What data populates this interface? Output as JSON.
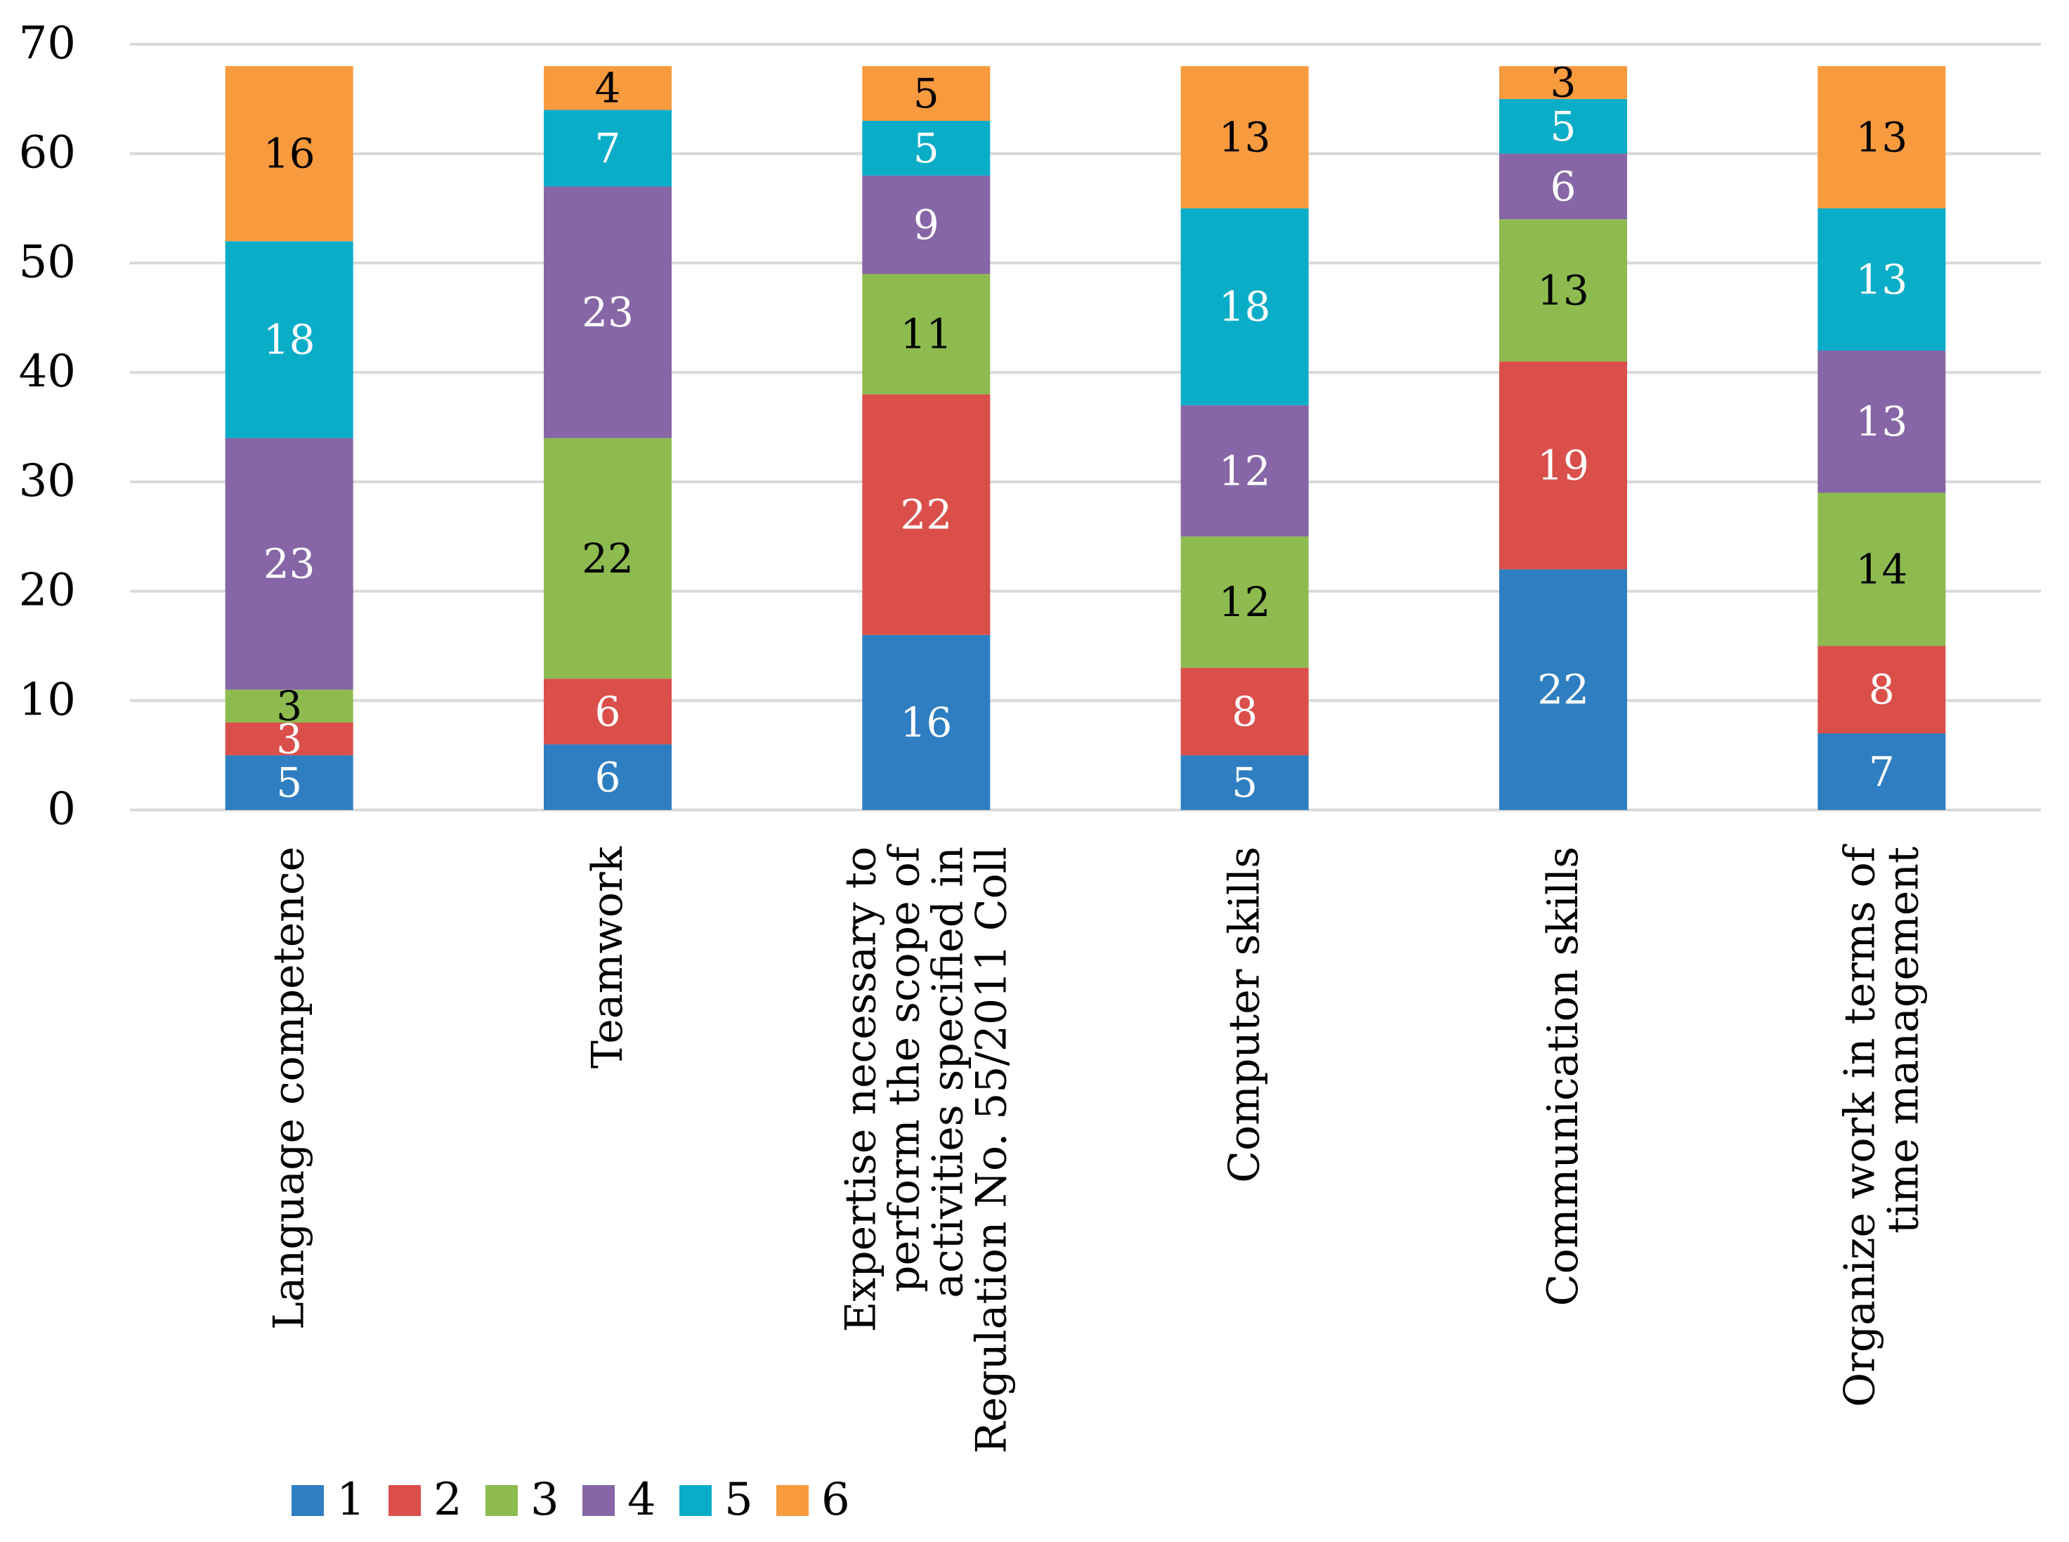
{
  "chart_data": {
    "type": "bar",
    "stacked": true,
    "categories": [
      [
        "Language competence"
      ],
      [
        "Teamwork"
      ],
      [
        "Expertise necessary to",
        "perform the scope of",
        "activities specified in",
        "Regulation No. 55/2011 Coll"
      ],
      [
        "Computer skills"
      ],
      [
        "Communication skills"
      ],
      [
        "Organize work in terms of",
        "time management"
      ]
    ],
    "series": [
      {
        "name": "1",
        "color": "#2E7EC1",
        "label_color": "#ffffff",
        "values": [
          5,
          6,
          16,
          5,
          22,
          7
        ]
      },
      {
        "name": "2",
        "color": "#DA4F4A",
        "label_color": "#ffffff",
        "values": [
          3,
          6,
          22,
          8,
          19,
          8
        ]
      },
      {
        "name": "3",
        "color": "#8DBB50",
        "label_color": "#000000",
        "values": [
          3,
          22,
          11,
          12,
          13,
          14
        ]
      },
      {
        "name": "4",
        "color": "#8666A6",
        "label_color": "#ffffff",
        "values": [
          23,
          23,
          9,
          12,
          6,
          13
        ]
      },
      {
        "name": "5",
        "color": "#0AADC8",
        "label_color": "#ffffff",
        "values": [
          18,
          7,
          5,
          18,
          5,
          13
        ]
      },
      {
        "name": "6",
        "color": "#F89A3E",
        "label_color": "#000000",
        "values": [
          16,
          4,
          5,
          13,
          3,
          13
        ]
      }
    ],
    "ylim": [
      0,
      70
    ],
    "yticks": [
      0,
      10,
      20,
      30,
      40,
      50,
      60,
      70
    ],
    "grid": true,
    "legend_position": "bottom-left",
    "xlabel": "",
    "ylabel": ""
  }
}
